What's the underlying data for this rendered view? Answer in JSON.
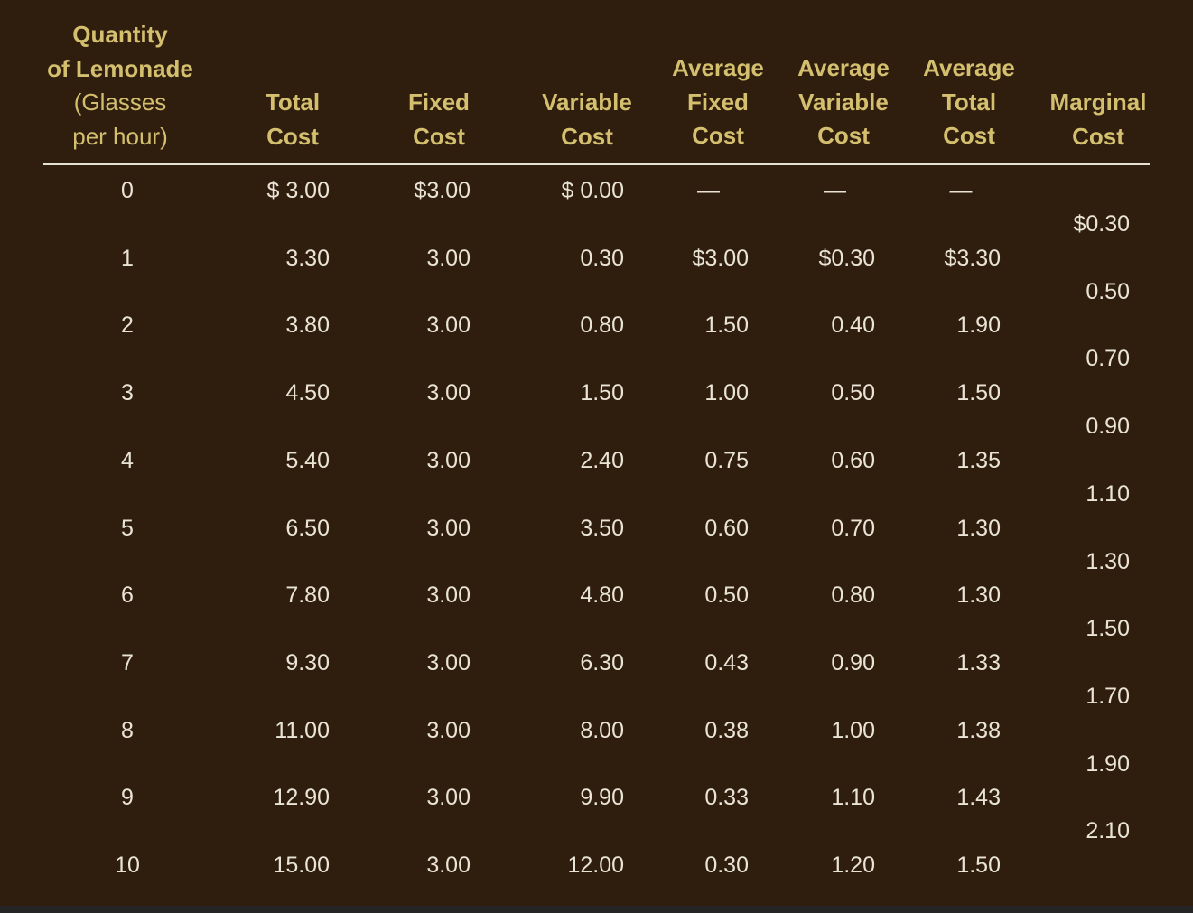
{
  "headers": {
    "quantity": [
      "Quantity",
      "of Lemonade",
      "(Glasses",
      "per hour)"
    ],
    "total_cost": [
      "Total",
      "Cost"
    ],
    "fixed_cost": [
      "Fixed",
      "Cost"
    ],
    "variable_cost": [
      "Variable",
      "Cost"
    ],
    "avg_fixed_cost": [
      "Average",
      "Fixed",
      "Cost"
    ],
    "avg_variable_cost": [
      "Average",
      "Variable",
      "Cost"
    ],
    "avg_total_cost": [
      "Average",
      "Total",
      "Cost"
    ],
    "marginal_cost": [
      "Marginal",
      "Cost"
    ]
  },
  "rows": [
    {
      "q": "0",
      "tc": "$ 3.00",
      "fc": "$3.00",
      "vc": "$ 0.00",
      "afc": "—",
      "avc": "—",
      "atc": "—"
    },
    {
      "q": "1",
      "tc": "3.30",
      "fc": "3.00",
      "vc": "0.30",
      "afc": "$3.00",
      "avc": "$0.30",
      "atc": "$3.30"
    },
    {
      "q": "2",
      "tc": "3.80",
      "fc": "3.00",
      "vc": "0.80",
      "afc": "1.50",
      "avc": "0.40",
      "atc": "1.90"
    },
    {
      "q": "3",
      "tc": "4.50",
      "fc": "3.00",
      "vc": "1.50",
      "afc": "1.00",
      "avc": "0.50",
      "atc": "1.50"
    },
    {
      "q": "4",
      "tc": "5.40",
      "fc": "3.00",
      "vc": "2.40",
      "afc": "0.75",
      "avc": "0.60",
      "atc": "1.35"
    },
    {
      "q": "5",
      "tc": "6.50",
      "fc": "3.00",
      "vc": "3.50",
      "afc": "0.60",
      "avc": "0.70",
      "atc": "1.30"
    },
    {
      "q": "6",
      "tc": "7.80",
      "fc": "3.00",
      "vc": "4.80",
      "afc": "0.50",
      "avc": "0.80",
      "atc": "1.30"
    },
    {
      "q": "7",
      "tc": "9.30",
      "fc": "3.00",
      "vc": "6.30",
      "afc": "0.43",
      "avc": "0.90",
      "atc": "1.33"
    },
    {
      "q": "8",
      "tc": "11.00",
      "fc": "3.00",
      "vc": "8.00",
      "afc": "0.38",
      "avc": "1.00",
      "atc": "1.38"
    },
    {
      "q": "9",
      "tc": "12.90",
      "fc": "3.00",
      "vc": "9.90",
      "afc": "0.33",
      "avc": "1.10",
      "atc": "1.43"
    },
    {
      "q": "10",
      "tc": "15.00",
      "fc": "3.00",
      "vc": "12.00",
      "afc": "0.30",
      "avc": "1.20",
      "atc": "1.50"
    }
  ],
  "marginal": [
    "$0.30",
    "0.50",
    "0.70",
    "0.90",
    "1.10",
    "1.30",
    "1.50",
    "1.70",
    "1.90",
    "2.10"
  ]
}
